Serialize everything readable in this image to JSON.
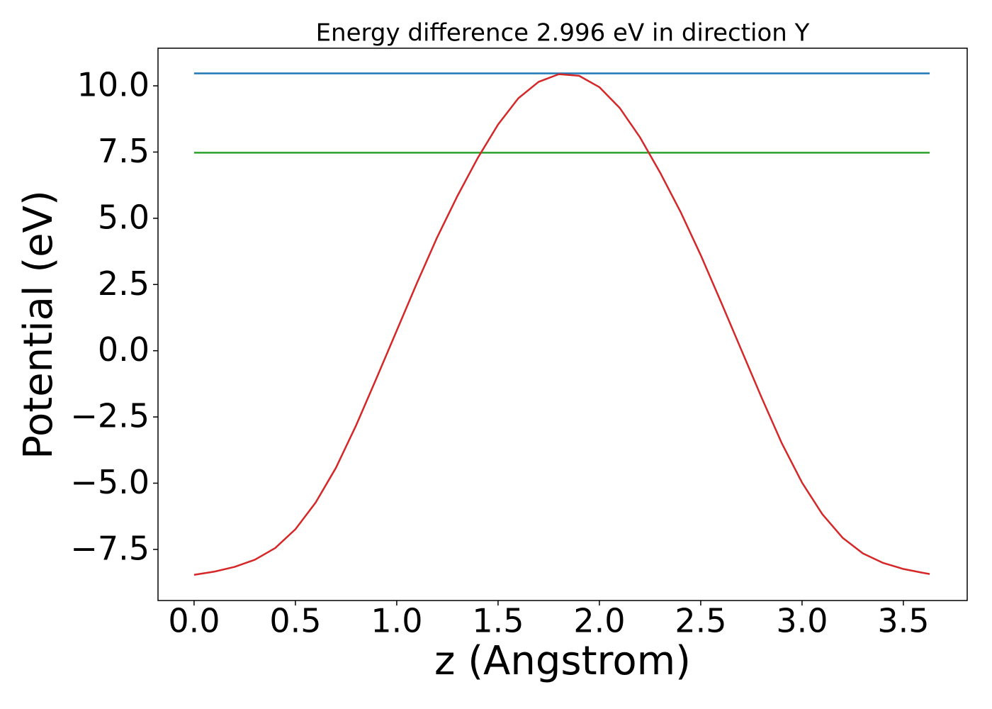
{
  "chart_data": {
    "type": "line",
    "title": "Energy difference 2.996 eV in direction Y",
    "x_label": "z (Angstrom)",
    "y_label": "Potential (eV)",
    "series": [
      {
        "color": "#1f77b4",
        "x": [
          0,
          3.63
        ],
        "values": [
          10.47,
          10.47
        ]
      },
      {
        "color": "#2ca02c",
        "x": [
          0,
          3.63
        ],
        "values": [
          7.474,
          7.474
        ]
      },
      {
        "color": "#d62728",
        "x": [
          0,
          0.1,
          0.2,
          0.3,
          0.4,
          0.5,
          0.6,
          0.7,
          0.8,
          0.9,
          1.0,
          1.1,
          1.2,
          1.3,
          1.4,
          1.5,
          1.6,
          1.7,
          1.8,
          1.9,
          2.0,
          2.1,
          2.2,
          2.3,
          2.4,
          2.5,
          2.6,
          2.7,
          2.8,
          2.9,
          3.0,
          3.1,
          3.2,
          3.3,
          3.4,
          3.5,
          3.6,
          3.63
        ],
        "values": [
          -8.46,
          -8.34,
          -8.16,
          -7.89,
          -7.45,
          -6.74,
          -5.73,
          -4.42,
          -2.81,
          -1.04,
          0.76,
          2.56,
          4.29,
          5.85,
          7.28,
          8.54,
          9.53,
          10.15,
          10.44,
          10.38,
          9.95,
          9.17,
          8.06,
          6.72,
          5.25,
          3.61,
          1.84,
          0.04,
          -1.76,
          -3.49,
          -4.98,
          -6.17,
          -7.06,
          -7.65,
          -8.01,
          -8.24,
          -8.39,
          -8.43
        ]
      }
    ],
    "xlim": [
      -0.178,
      3.815
    ],
    "ylim": [
      -9.43,
      11.42
    ],
    "xticks": [
      {
        "value": 0,
        "label": "0.0"
      },
      {
        "value": 0.5,
        "label": "0.5"
      },
      {
        "value": 1,
        "label": "1.0"
      },
      {
        "value": 1.5,
        "label": "1.5"
      },
      {
        "value": 2,
        "label": "2.0"
      },
      {
        "value": 2.5,
        "label": "2.5"
      },
      {
        "value": 3,
        "label": "3.0"
      },
      {
        "value": 3.5,
        "label": "3.5"
      }
    ],
    "yticks": [
      {
        "value": -7.5,
        "label": "−7.5"
      },
      {
        "value": -5,
        "label": "−5.0"
      },
      {
        "value": -2.5,
        "label": "−2.5"
      },
      {
        "value": 0,
        "label": "0.0"
      },
      {
        "value": 2.5,
        "label": "2.5"
      },
      {
        "value": 5,
        "label": "5.0"
      },
      {
        "value": 7.5,
        "label": "7.5"
      },
      {
        "value": 10,
        "label": "10.0"
      }
    ],
    "grid": false
  }
}
